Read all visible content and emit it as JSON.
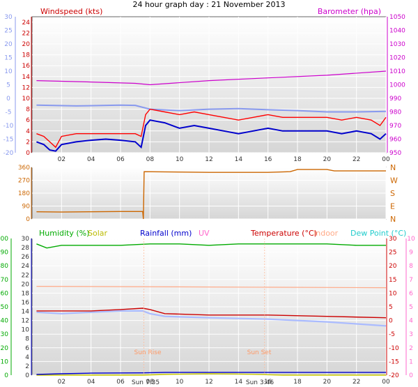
{
  "header": {
    "title": "24 hour graph day : 21 November 2013",
    "windspeed_label": "Windspeed (kts)",
    "barometer_label": "Barometer (hpa)"
  },
  "legend": {
    "humidity": "Humidity (%)",
    "solar": "Solar",
    "rainfall": "Rainfall (mm)",
    "uv": "UV",
    "temperature": "Temperature (°C)",
    "indoor": "Indoor",
    "dewpoint": "Dew Point (°C)"
  },
  "annotations": {
    "sunrise": "Sun Rise",
    "sunset": "Sun Set",
    "sunrise_time": "Sun 7:35",
    "sunset_time": "Sun 3:46"
  },
  "colors": {
    "wind": "#ff0000",
    "wind_avg": "#0000cc",
    "baro": "#cc00cc",
    "temp_outer": "#8899ee",
    "dir": "#cc6600",
    "humidity": "#00aa00",
    "rain": "#0000cc",
    "solar": "#cccc00",
    "temp": "#cc0000",
    "indoor": "#ffaa88",
    "dewpoint": "#aabbff",
    "uv": "#ff66cc"
  },
  "chart_data": [
    {
      "type": "line",
      "x_ticks": [
        "02",
        "04",
        "06",
        "08",
        "10",
        "12",
        "14",
        "16",
        "18",
        "20",
        "22",
        "00"
      ],
      "y_left_ticks": [
        0,
        2,
        4,
        6,
        8,
        10,
        12,
        14,
        16,
        18,
        20,
        22,
        24
      ],
      "y_outer_ticks": [
        -20,
        -15,
        -10,
        -5,
        0,
        5,
        10,
        15,
        20,
        25,
        30
      ],
      "y_right_ticks": [
        950,
        960,
        970,
        980,
        990,
        1000,
        1010,
        1020,
        1030,
        1040,
        1050
      ],
      "ylim": [
        0,
        25
      ],
      "series": [
        {
          "values": [
            [
              0.3,
              3.5
            ],
            [
              0.8,
              3
            ],
            [
              1.2,
              2
            ],
            [
              1.6,
              1
            ],
            [
              2,
              3
            ],
            [
              3,
              3.5
            ],
            [
              4,
              3.5
            ],
            [
              5,
              3.5
            ],
            [
              6,
              3.5
            ],
            [
              7,
              3.5
            ],
            [
              7.4,
              3
            ],
            [
              7.7,
              7
            ],
            [
              8,
              8
            ],
            [
              9,
              7.5
            ],
            [
              10,
              7
            ],
            [
              11,
              7.5
            ],
            [
              12,
              7
            ],
            [
              13,
              6.5
            ],
            [
              14,
              6
            ],
            [
              15,
              6.5
            ],
            [
              16,
              7
            ],
            [
              17,
              6.5
            ],
            [
              18,
              6.5
            ],
            [
              19,
              6.5
            ],
            [
              20,
              6.5
            ],
            [
              21,
              6
            ],
            [
              22,
              6.5
            ],
            [
              23,
              6
            ],
            [
              23.6,
              5
            ],
            [
              24,
              6.5
            ]
          ]
        },
        {
          "values": [
            [
              0.3,
              2
            ],
            [
              0.8,
              1.5
            ],
            [
              1.2,
              0.5
            ],
            [
              1.6,
              0.3
            ],
            [
              2,
              1.5
            ],
            [
              3,
              2
            ],
            [
              4,
              2.3
            ],
            [
              5,
              2.5
            ],
            [
              6,
              2.3
            ],
            [
              7,
              2
            ],
            [
              7.4,
              1
            ],
            [
              7.7,
              5
            ],
            [
              8,
              6
            ],
            [
              9,
              5.5
            ],
            [
              10,
              4.5
            ],
            [
              11,
              5
            ],
            [
              12,
              4.5
            ],
            [
              13,
              4
            ],
            [
              14,
              3.5
            ],
            [
              15,
              4
            ],
            [
              16,
              4.5
            ],
            [
              17,
              4
            ],
            [
              18,
              4
            ],
            [
              19,
              4
            ],
            [
              20,
              4
            ],
            [
              21,
              3.5
            ],
            [
              22,
              4
            ],
            [
              23,
              3.5
            ],
            [
              23.6,
              2.5
            ],
            [
              24,
              3.5
            ]
          ]
        },
        {
          "values": [
            [
              0.3,
              1003
            ],
            [
              4,
              1002
            ],
            [
              7,
              1001
            ],
            [
              8,
              1000
            ],
            [
              12,
              1003
            ],
            [
              16,
              1005
            ],
            [
              20,
              1007
            ],
            [
              24,
              1010
            ]
          ]
        },
        {
          "values": [
            [
              0.3,
              -2.5
            ],
            [
              3,
              -2.8
            ],
            [
              6,
              -2.5
            ],
            [
              7,
              -2.6
            ],
            [
              8,
              -4
            ],
            [
              10,
              -4.5
            ],
            [
              12,
              -4
            ],
            [
              14,
              -3.8
            ],
            [
              16,
              -4.2
            ],
            [
              18,
              -4.5
            ],
            [
              20,
              -5
            ],
            [
              22,
              -5
            ],
            [
              24,
              -4.8
            ]
          ]
        }
      ]
    },
    {
      "type": "line",
      "x_ticks": [
        "02",
        "04",
        "06",
        "08",
        "10",
        "12",
        "14",
        "16",
        "18",
        "20",
        "22",
        "00"
      ],
      "y_left_ticks": [
        0,
        90,
        180,
        270,
        360
      ],
      "y_right_labels": [
        "N",
        "W",
        "S",
        "E",
        "N"
      ],
      "ylim": [
        0,
        360
      ],
      "series": [
        {
          "values": [
            [
              0.3,
              50
            ],
            [
              2,
              48
            ],
            [
              4,
              50
            ],
            [
              6,
              52
            ],
            [
              7.5,
              52
            ],
            [
              7.55,
              0
            ],
            [
              7.6,
              330
            ],
            [
              12,
              325
            ],
            [
              16,
              325
            ],
            [
              17.5,
              330
            ],
            [
              18,
              345
            ],
            [
              20,
              345
            ],
            [
              20.5,
              335
            ],
            [
              24,
              335
            ]
          ]
        }
      ]
    },
    {
      "type": "line",
      "x_ticks": [
        "02",
        "04",
        "06",
        "08",
        "10",
        "12",
        "14",
        "16",
        "18",
        "20",
        "22",
        "00"
      ],
      "y_left_ticks": [
        0,
        10,
        20,
        30,
        40,
        50,
        60,
        70,
        80,
        90,
        100
      ],
      "y_mid_ticks": [
        0,
        2,
        4,
        6,
        8,
        10,
        12,
        14,
        16,
        18,
        20,
        22,
        24,
        26,
        28,
        30
      ],
      "y_right_ticks": [
        -20,
        -15,
        -10,
        -5,
        0,
        5,
        10,
        15,
        20,
        25,
        30
      ],
      "y_uv_ticks": [
        0,
        1,
        2,
        3,
        4,
        5,
        6,
        7,
        8,
        9,
        10
      ],
      "ylim": [
        0,
        100
      ],
      "series": [
        {
          "values": [
            [
              0.3,
              96
            ],
            [
              1,
              93
            ],
            [
              2,
              95
            ],
            [
              4,
              95
            ],
            [
              6,
              95
            ],
            [
              8,
              96
            ],
            [
              10,
              96
            ],
            [
              12,
              95
            ],
            [
              14,
              96
            ],
            [
              16,
              96
            ],
            [
              18,
              96
            ],
            [
              20,
              96
            ],
            [
              22,
              95
            ],
            [
              24,
              95
            ]
          ]
        },
        {
          "values": [
            [
              0.3,
              47
            ],
            [
              2,
              47
            ],
            [
              4,
              47
            ],
            [
              6,
              48
            ],
            [
              7.5,
              49
            ],
            [
              8,
              48
            ],
            [
              9,
              45
            ],
            [
              12,
              44
            ],
            [
              16,
              44
            ],
            [
              20,
              43
            ],
            [
              24,
              42
            ]
          ]
        },
        {
          "values": [
            [
              0.3,
              46
            ],
            [
              2,
              45
            ],
            [
              4,
              46
            ],
            [
              6,
              47
            ],
            [
              7.5,
              47
            ],
            [
              8,
              45
            ],
            [
              9,
              43
            ],
            [
              12,
              42
            ],
            [
              16,
              41
            ],
            [
              20,
              39
            ],
            [
              24,
              36
            ]
          ]
        },
        {
          "values": [
            [
              0.3,
              65
            ],
            [
              24,
              64
            ]
          ]
        },
        {
          "values": [
            [
              0.3,
              0.5
            ],
            [
              2,
              1
            ],
            [
              4,
              1.5
            ],
            [
              7.5,
              1.7
            ],
            [
              9,
              2
            ],
            [
              24,
              2
            ]
          ]
        },
        {
          "values": [
            [
              0.3,
              0
            ],
            [
              7.5,
              0
            ],
            [
              9,
              0.5
            ],
            [
              12,
              1
            ],
            [
              14,
              0.8
            ],
            [
              16,
              0.3
            ],
            [
              17,
              0
            ],
            [
              24,
              0
            ]
          ]
        }
      ]
    }
  ]
}
